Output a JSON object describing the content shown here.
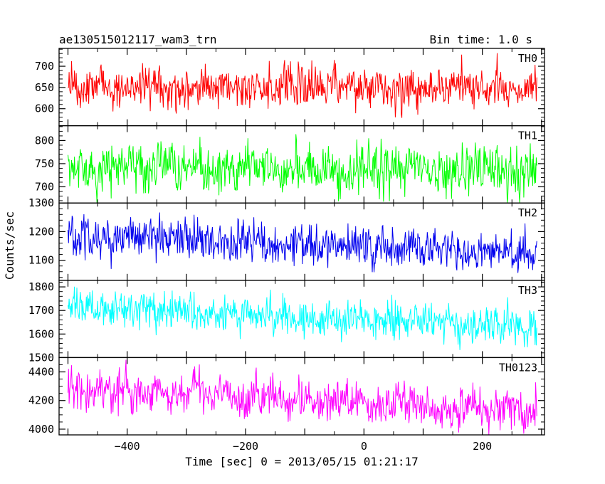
{
  "header": {
    "left_title": "ae130515012117_wam3_trn",
    "right_title": "Bin time: 1.0 s"
  },
  "chart_data": {
    "type": "line",
    "xlabel": "Time [sec] 0 = 2013/05/15 01:21:17",
    "ylabel": "Counts/sec",
    "xlim": [
      -515,
      305
    ],
    "x_range": [
      -500,
      292
    ],
    "bin_time": 1.0,
    "x_ticks": [
      -400,
      -200,
      0,
      200
    ],
    "x_tick_labels": [
      "−400",
      "−200",
      "0",
      "200"
    ],
    "panels": [
      {
        "name": "TH0",
        "color": "#ff0000",
        "ylim": [
          560,
          742
        ],
        "y_ticks": [
          600,
          650,
          700
        ],
        "y_tick_labels": [
          "600",
          "650",
          "700"
        ],
        "mean_start": 650,
        "mean_end": 650,
        "noise_sd": 25
      },
      {
        "name": "TH1",
        "color": "#00ff00",
        "ylim": [
          665,
          832
        ],
        "y_ticks": [
          700,
          750,
          800
        ],
        "y_tick_labels": [
          "700",
          "750",
          "800"
        ],
        "mean_start": 740,
        "mean_end": 735,
        "noise_sd": 26
      },
      {
        "name": "TH2",
        "color": "#0000ee",
        "ylim": [
          1030,
          1300
        ],
        "y_ticks": [
          1100,
          1200,
          1300
        ],
        "y_tick_labels": [
          "1100",
          "1200",
          "1300"
        ],
        "mean_start": 1185,
        "mean_end": 1125,
        "noise_sd": 36
      },
      {
        "name": "TH3",
        "color": "#00ffff",
        "ylim": [
          1500,
          1828
        ],
        "y_ticks": [
          1500,
          1600,
          1700,
          1800
        ],
        "y_tick_labels": [
          "1500",
          "1600",
          "1700",
          "1800"
        ],
        "mean_start": 1720,
        "mean_end": 1630,
        "noise_sd": 42
      },
      {
        "name": "TH0123",
        "color": "#ff00ff",
        "ylim": [
          3960,
          4500
        ],
        "y_ticks": [
          4000,
          4200,
          4400
        ],
        "y_tick_labels": [
          "4000",
          "4200",
          "4400"
        ],
        "mean_start": 4290,
        "mean_end": 4130,
        "noise_sd": 75
      }
    ]
  }
}
